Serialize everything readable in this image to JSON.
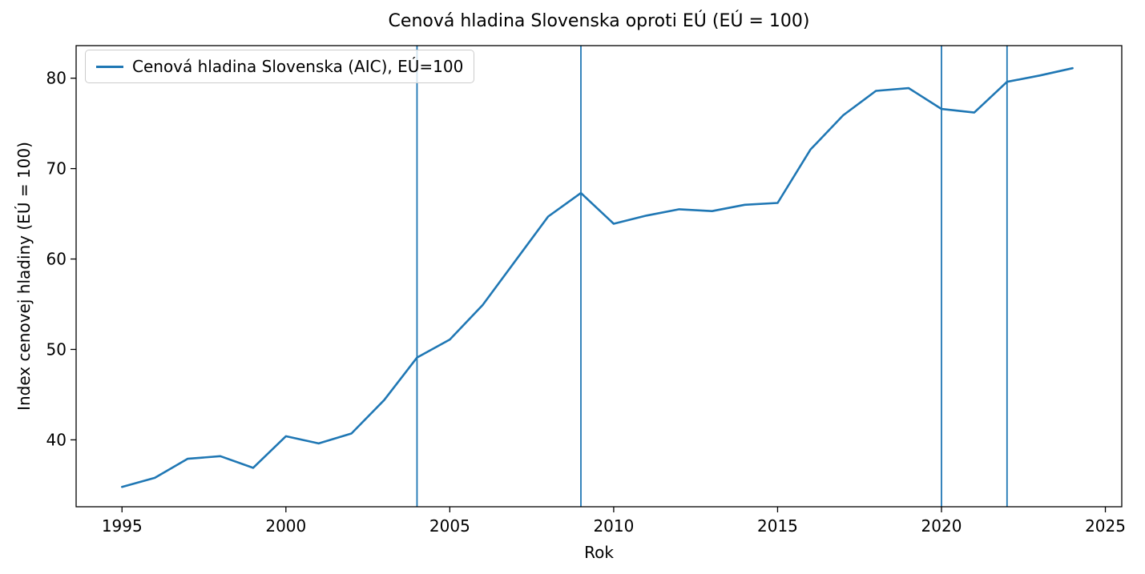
{
  "chart_data": {
    "type": "line",
    "title": "Cenová hladina Slovenska oproti EÚ (EÚ = 100)",
    "xlabel": "Rok",
    "ylabel": "Index cenovej hladiny (EÚ = 100)",
    "x": [
      1995,
      1996,
      1997,
      1998,
      1999,
      2000,
      2001,
      2002,
      2003,
      2004,
      2005,
      2006,
      2007,
      2008,
      2009,
      2010,
      2011,
      2012,
      2013,
      2014,
      2015,
      2016,
      2017,
      2018,
      2019,
      2020,
      2021,
      2022,
      2023,
      2024
    ],
    "series": [
      {
        "name": "Cenová hladina Slovenska (AIC), EÚ=100",
        "values": [
          34.8,
          35.8,
          37.9,
          38.2,
          36.9,
          40.4,
          39.6,
          40.7,
          44.4,
          49.1,
          51.1,
          54.9,
          59.8,
          64.7,
          67.3,
          63.9,
          64.8,
          65.5,
          65.3,
          66.0,
          66.2,
          72.1,
          75.9,
          78.6,
          78.9,
          76.6,
          76.2,
          79.6,
          80.3,
          81.1
        ]
      }
    ],
    "vlines": [
      2004,
      2009,
      2020,
      2022
    ],
    "xticks": [
      1995,
      2000,
      2005,
      2010,
      2015,
      2020,
      2025
    ],
    "yticks": [
      40,
      50,
      60,
      70,
      80
    ],
    "xlim": [
      1993.6,
      2025.5
    ],
    "ylim": [
      32.6,
      83.6
    ],
    "legend_position": "upper left",
    "grid": false,
    "colors": {
      "line": "#1f77b4",
      "vline": "#1f77b4",
      "spine": "#000000",
      "text": "#000000"
    }
  }
}
